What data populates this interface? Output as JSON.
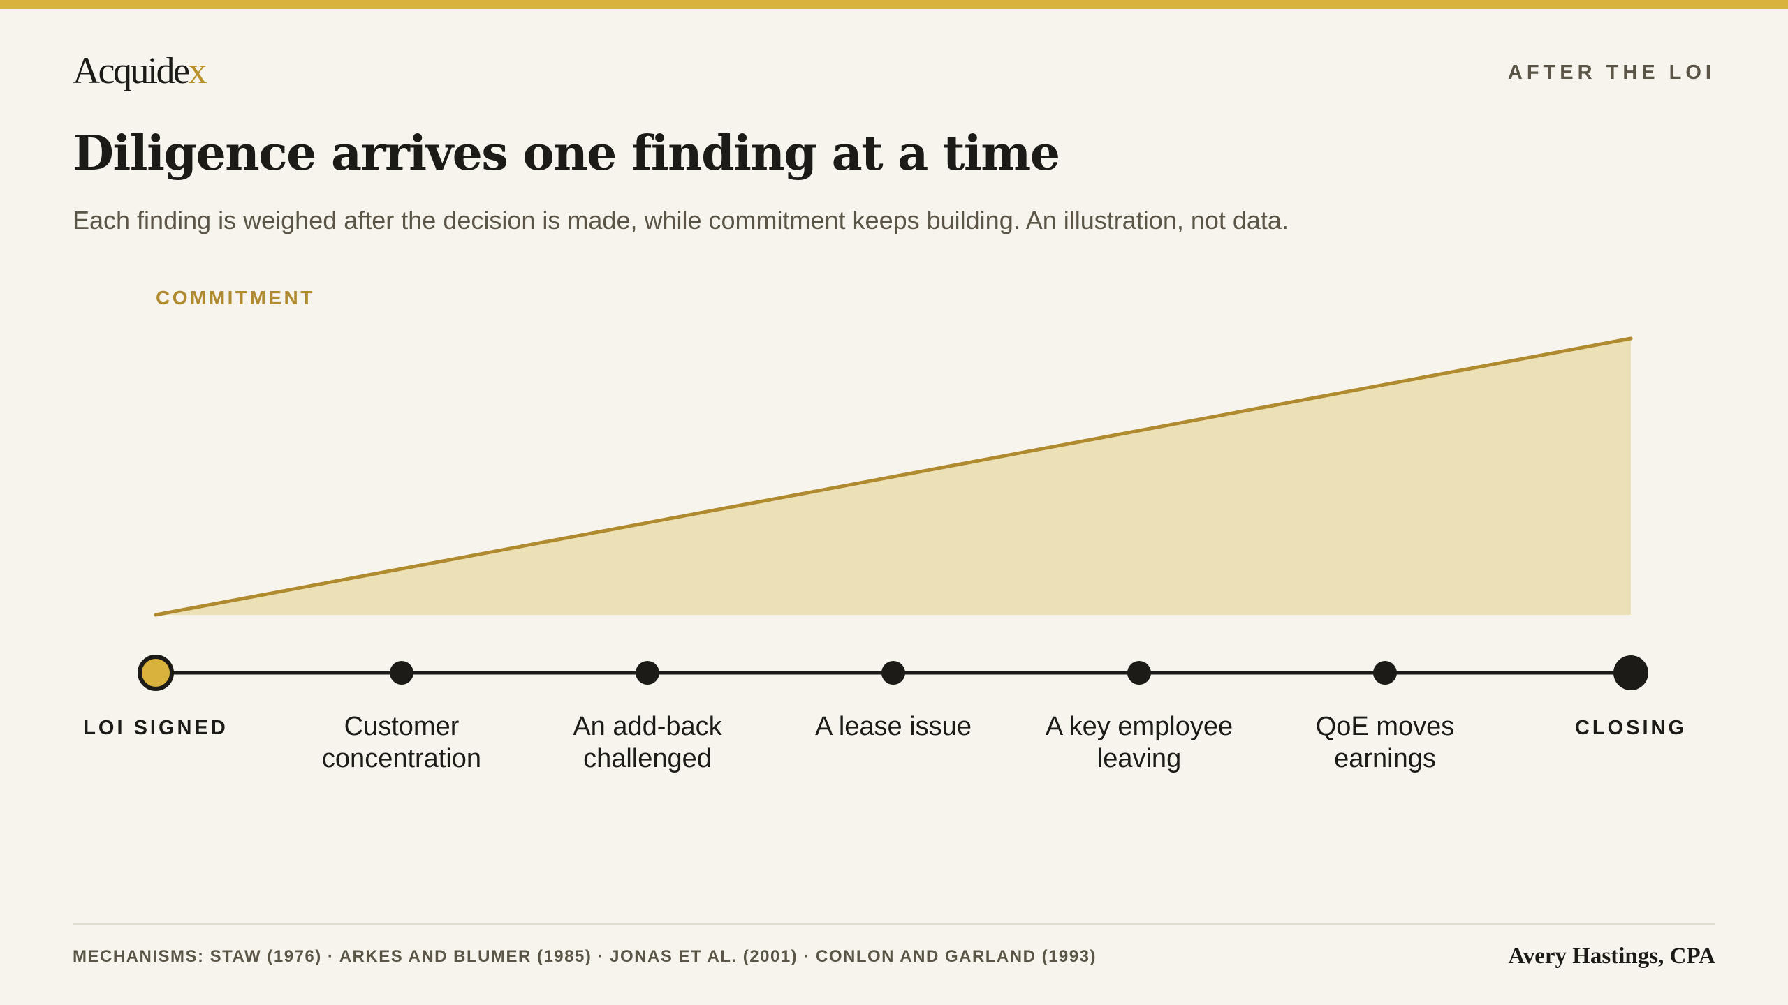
{
  "header": {
    "logo_prefix": "Acquide",
    "logo_suffix": "x",
    "kicker": "AFTER THE LOI"
  },
  "title": "Diligence arrives one finding at a time",
  "subtitle": "Each finding is weighed after the decision is made, while commitment keeps building. An illustration, not data.",
  "colors": {
    "accent": "#d8b23c",
    "line": "#b08a2e",
    "area": "#ece0b6",
    "ink": "#1c1b17",
    "muted": "#5a5546",
    "background": "#f7f4ed"
  },
  "chart_data": {
    "type": "area",
    "ylabel": "COMMITMENT",
    "y_range": [
      0,
      1
    ],
    "line": {
      "start": 0,
      "end": 1
    },
    "timeline": [
      {
        "label": [
          "LOI SIGNED"
        ],
        "kind": "start"
      },
      {
        "label": [
          "Customer",
          "concentration"
        ],
        "kind": "finding"
      },
      {
        "label": [
          "An add-back",
          "challenged"
        ],
        "kind": "finding"
      },
      {
        "label": [
          "A lease issue"
        ],
        "kind": "finding"
      },
      {
        "label": [
          "A key employee",
          "leaving"
        ],
        "kind": "finding"
      },
      {
        "label": [
          "QoE moves",
          "earnings"
        ],
        "kind": "finding"
      },
      {
        "label": [
          "CLOSING"
        ],
        "kind": "end"
      }
    ]
  },
  "footer": {
    "mechanisms": "MECHANISMS: STAW (1976) · ARKES AND BLUMER (1985) · JONAS ET AL. (2001) · CONLON AND GARLAND (1993)",
    "author": "Avery Hastings, CPA"
  }
}
